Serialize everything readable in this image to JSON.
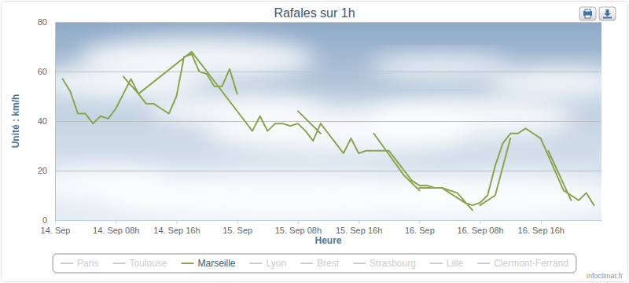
{
  "chart_data": {
    "type": "line",
    "title": "Rafales sur 1h",
    "xlabel": "Heure",
    "ylabel": "Unité : km/h",
    "annotations": [
      "infoclimat.fr"
    ],
    "x": [
      1,
      2,
      3,
      4,
      5,
      6,
      7,
      8,
      9,
      10,
      11,
      12,
      13,
      14,
      15,
      16,
      17,
      18,
      19,
      20,
      21,
      22,
      23,
      24,
      null,
      9,
      11,
      18,
      25,
      26,
      27,
      28,
      29,
      30,
      31,
      32,
      33,
      34,
      35,
      36,
      37,
      38,
      39,
      40,
      41,
      42,
      43,
      44,
      45,
      46,
      47,
      48,
      49,
      50,
      51,
      52,
      53,
      54,
      55,
      56,
      57,
      58,
      59,
      60,
      61,
      62,
      63,
      64,
      65,
      66,
      67,
      68,
      69,
      70,
      71,
      null,
      32,
      35,
      null,
      42,
      46,
      48,
      null,
      48,
      51,
      53,
      55,
      null,
      56,
      58,
      60,
      null,
      65,
      68
    ],
    "series": [
      {
        "name": "Paris",
        "color": "#cccccc",
        "values": [
          null,
          null,
          null,
          null,
          null,
          null,
          null,
          null,
          null,
          null,
          null,
          null,
          null,
          null,
          null,
          null,
          null,
          null,
          null,
          null,
          null,
          null,
          null,
          null,
          null,
          null,
          null,
          null,
          null,
          null,
          null,
          null,
          null,
          null,
          null,
          null,
          null,
          null,
          null,
          null,
          null,
          null,
          null,
          null,
          null,
          null,
          null,
          null,
          null,
          null,
          null,
          null,
          null,
          null,
          null,
          null,
          null,
          null,
          null,
          null,
          null,
          null,
          null,
          null,
          null,
          null,
          null,
          null,
          null,
          null,
          null,
          null,
          null,
          null,
          null,
          null,
          null,
          null,
          null,
          null,
          null,
          null,
          null,
          null,
          null,
          null,
          null,
          null,
          null,
          null,
          null,
          null,
          null,
          null
        ]
      },
      {
        "name": "Toulouse",
        "color": "#cccccc",
        "values": [
          null,
          null,
          null,
          null,
          null,
          null,
          null,
          null,
          null,
          null,
          null,
          null,
          null,
          null,
          null,
          null,
          null,
          null,
          null,
          null,
          null,
          null,
          null,
          null,
          null,
          null,
          null,
          null,
          null,
          null,
          null,
          null,
          null,
          null,
          null,
          null,
          null,
          null,
          null,
          null,
          null,
          null,
          null,
          null,
          null,
          null,
          null,
          null,
          null,
          null,
          null,
          null,
          null,
          null,
          null,
          null,
          null,
          null,
          null,
          null,
          null,
          null,
          null,
          null,
          null,
          null,
          null,
          null,
          null,
          null,
          null,
          null,
          null,
          null,
          null,
          null,
          null,
          null,
          null,
          null,
          null,
          null,
          null,
          null,
          null,
          null,
          null,
          null,
          null,
          null,
          null,
          null,
          null,
          null
        ]
      },
      {
        "name": "Marseille",
        "color": "#89a54e",
        "values": [
          57,
          52,
          43,
          43,
          39,
          42,
          41,
          45,
          51,
          57,
          51,
          47,
          47,
          45,
          43,
          50,
          66,
          67,
          60,
          59,
          54,
          54,
          61,
          51,
          null,
          58,
          51,
          68,
          40,
          36,
          42,
          36,
          39,
          39,
          38,
          39,
          36,
          32,
          39,
          35,
          31,
          27,
          33,
          27,
          28,
          28,
          28,
          28,
          24,
          20,
          16,
          14,
          14,
          13,
          13,
          11,
          9,
          7,
          6,
          7,
          10,
          22,
          31,
          35,
          35,
          37,
          35,
          33,
          26,
          19,
          12,
          10,
          8,
          11,
          6,
          null,
          44,
          35,
          null,
          35,
          18,
          12,
          null,
          13,
          13,
          11,
          4,
          null,
          6,
          10,
          33,
          null,
          28,
          8
        ]
      },
      {
        "name": "Lyon",
        "color": "#cccccc",
        "values": [
          null,
          null,
          null,
          null,
          null,
          null,
          null,
          null,
          null,
          null,
          null,
          null,
          null,
          null,
          null,
          null,
          null,
          null,
          null,
          null,
          null,
          null,
          null,
          null,
          null,
          null,
          null,
          null,
          null,
          null,
          null,
          null,
          null,
          null,
          null,
          null,
          null,
          null,
          null,
          null,
          null,
          null,
          null,
          null,
          null,
          null,
          null,
          null,
          null,
          null,
          null,
          null,
          null,
          null,
          null,
          null,
          null,
          null,
          null,
          null,
          null,
          null,
          null,
          null,
          null,
          null,
          null,
          null,
          null,
          null,
          null,
          null,
          null,
          null,
          null,
          null,
          null,
          null,
          null,
          null,
          null,
          null,
          null,
          null,
          null,
          null,
          null,
          null,
          null,
          null,
          null,
          null,
          null,
          null
        ]
      },
      {
        "name": "Brest",
        "color": "#cccccc",
        "values": [
          null,
          null,
          null,
          null,
          null,
          null,
          null,
          null,
          null,
          null,
          null,
          null,
          null,
          null,
          null,
          null,
          null,
          null,
          null,
          null,
          null,
          null,
          null,
          null,
          null,
          null,
          null,
          null,
          null,
          null,
          null,
          null,
          null,
          null,
          null,
          null,
          null,
          null,
          null,
          null,
          null,
          null,
          null,
          null,
          null,
          null,
          null,
          null,
          null,
          null,
          null,
          null,
          null,
          null,
          null,
          null,
          null,
          null,
          null,
          null,
          null,
          null,
          null,
          null,
          null,
          null,
          null,
          null,
          null,
          null,
          null,
          null,
          null,
          null,
          null,
          null,
          null,
          null,
          null,
          null,
          null,
          null,
          null,
          null,
          null,
          null,
          null,
          null,
          null,
          null,
          null,
          null,
          null,
          null
        ]
      },
      {
        "name": "Strasbourg",
        "color": "#cccccc",
        "values": [
          null,
          null,
          null,
          null,
          null,
          null,
          null,
          null,
          null,
          null,
          null,
          null,
          null,
          null,
          null,
          null,
          null,
          null,
          null,
          null,
          null,
          null,
          null,
          null,
          null,
          null,
          null,
          null,
          null,
          null,
          null,
          null,
          null,
          null,
          null,
          null,
          null,
          null,
          null,
          null,
          null,
          null,
          null,
          null,
          null,
          null,
          null,
          null,
          null,
          null,
          null,
          null,
          null,
          null,
          null,
          null,
          null,
          null,
          null,
          null,
          null,
          null,
          null,
          null,
          null,
          null,
          null,
          null,
          null,
          null,
          null,
          null,
          null,
          null,
          null,
          null,
          null,
          null,
          null,
          null,
          null,
          null,
          null,
          null,
          null,
          null,
          null,
          null,
          null,
          null,
          null,
          null,
          null,
          null
        ]
      },
      {
        "name": "Lille",
        "color": "#cccccc",
        "values": [
          null,
          null,
          null,
          null,
          null,
          null,
          null,
          null,
          null,
          null,
          null,
          null,
          null,
          null,
          null,
          null,
          null,
          null,
          null,
          null,
          null,
          null,
          null,
          null,
          null,
          null,
          null,
          null,
          null,
          null,
          null,
          null,
          null,
          null,
          null,
          null,
          null,
          null,
          null,
          null,
          null,
          null,
          null,
          null,
          null,
          null,
          null,
          null,
          null,
          null,
          null,
          null,
          null,
          null,
          null,
          null,
          null,
          null,
          null,
          null,
          null,
          null,
          null,
          null,
          null,
          null,
          null,
          null,
          null,
          null,
          null,
          null,
          null,
          null,
          null,
          null,
          null,
          null,
          null,
          null,
          null,
          null,
          null,
          null,
          null,
          null,
          null,
          null,
          null,
          null,
          null,
          null,
          null,
          null
        ]
      },
      {
        "name": "Clermont-Ferrand",
        "color": "#cccccc",
        "values": [
          null,
          null,
          null,
          null,
          null,
          null,
          null,
          null,
          null,
          null,
          null,
          null,
          null,
          null,
          null,
          null,
          null,
          null,
          null,
          null,
          null,
          null,
          null,
          null,
          null,
          null,
          null,
          null,
          null,
          null,
          null,
          null,
          null,
          null,
          null,
          null,
          null,
          null,
          null,
          null,
          null,
          null,
          null,
          null,
          null,
          null,
          null,
          null,
          null,
          null,
          null,
          null,
          null,
          null,
          null,
          null,
          null,
          null,
          null,
          null,
          null,
          null,
          null,
          null,
          null,
          null,
          null,
          null,
          null,
          null,
          null,
          null,
          null,
          null,
          null,
          null,
          null,
          null,
          null,
          null,
          null,
          null,
          null,
          null,
          null,
          null,
          null,
          null,
          null,
          null,
          null,
          null,
          null,
          null
        ]
      }
    ],
    "xlim": [
      0,
      72
    ],
    "xticks": [
      {
        "value": 0,
        "label": "14. Sep"
      },
      {
        "value": 8,
        "label": "14. Sep 08h"
      },
      {
        "value": 16,
        "label": "14. Sep 16h"
      },
      {
        "value": 24,
        "label": "15. Sep"
      },
      {
        "value": 32,
        "label": "15. Sep 08h"
      },
      {
        "value": 40,
        "label": "15. Sep 16h"
      },
      {
        "value": 48,
        "label": "16. Sep"
      },
      {
        "value": 56,
        "label": "16. Sep 08h"
      },
      {
        "value": 64,
        "label": "16. Sep 16h"
      }
    ],
    "ylim": [
      0,
      80
    ],
    "yticks": [
      0,
      20,
      40,
      60,
      80
    ],
    "grid": true,
    "legend": "bottom"
  }
}
